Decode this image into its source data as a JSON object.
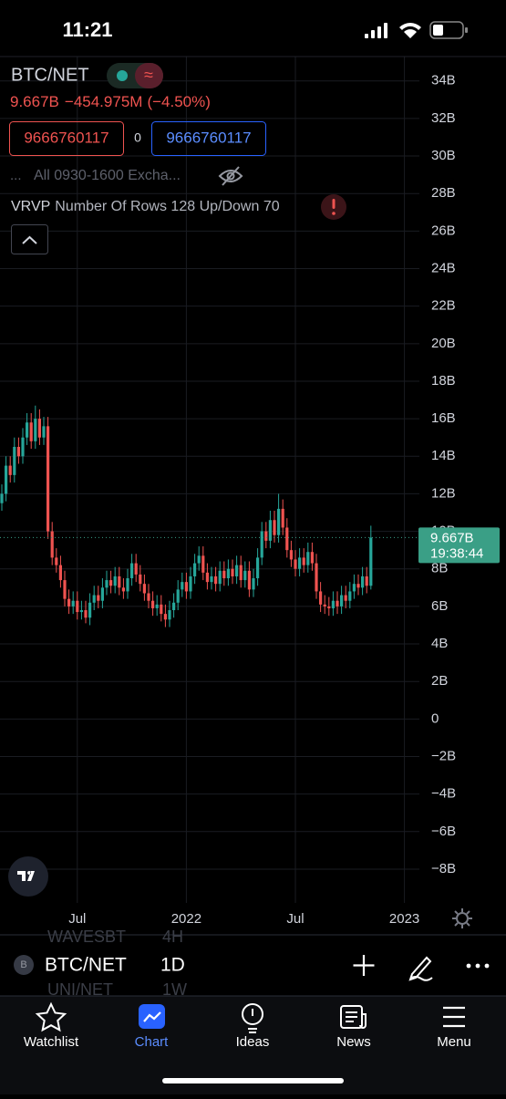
{
  "status_bar": {
    "time": "11:21"
  },
  "header": {
    "symbol": "BTC/NET",
    "last": "9.667B",
    "change": "−454.975M",
    "change_pct": "(−4.50%)"
  },
  "order_panel": {
    "sell": "9666760117",
    "spread": "0",
    "buy": "9666760117"
  },
  "session": {
    "dots": "...",
    "label": "All 0930-1600 Excha..."
  },
  "indicator": {
    "name": "VRVP",
    "params": "Number Of Rows 128 Up/Down 70"
  },
  "chart_data": {
    "type": "candlestick",
    "categories": [
      null,
      null,
      null,
      null,
      null,
      null,
      null,
      null,
      null,
      null,
      null,
      null,
      null,
      null,
      null,
      null,
      null,
      null,
      "Jul",
      null,
      null,
      null,
      null,
      null,
      null,
      null,
      null,
      null,
      null,
      null,
      null,
      null,
      null,
      null,
      null,
      null,
      null,
      null,
      null,
      null,
      null,
      null,
      null,
      null,
      "2022",
      null,
      null,
      null,
      null,
      null,
      null,
      null,
      null,
      null,
      null,
      null,
      null,
      null,
      null,
      null,
      null,
      null,
      null,
      null,
      null,
      null,
      null,
      null,
      null,
      null,
      "Jul",
      null,
      null,
      null,
      null,
      null,
      null,
      null,
      null,
      null,
      null,
      null,
      null,
      null,
      null,
      null,
      null,
      null,
      null,
      null,
      null,
      null,
      null,
      null,
      null,
      null,
      "2023"
    ],
    "open": [
      11.5,
      12.0,
      13.5,
      13.0,
      14.5,
      14.0,
      15.0,
      15.8,
      14.8,
      16.0,
      15.0,
      15.6,
      10.0,
      8.6,
      8.2,
      7.4,
      6.4,
      6.0,
      6.3,
      5.7,
      5.8,
      5.4,
      6.2,
      6.6,
      6.3,
      7.0,
      7.4,
      7.1,
      7.6,
      7.0,
      6.8,
      7.5,
      8.3,
      7.7,
      7.2,
      6.7,
      6.3,
      5.9,
      6.1,
      5.6,
      5.3,
      5.8,
      6.2,
      6.9,
      7.3,
      6.8,
      7.6,
      8.3,
      8.7,
      7.8,
      7.3,
      7.6,
      7.2,
      7.9,
      7.5,
      8.0,
      7.6,
      8.2,
      7.4,
      7.9,
      6.9,
      7.5,
      8.6,
      10.0,
      9.5,
      10.6,
      9.8,
      11.2,
      10.2,
      9.0,
      8.5,
      8.0,
      8.6,
      8.2,
      8.9,
      8.3,
      6.8,
      6.1,
      6.0,
      5.9,
      6.3,
      6.0,
      6.6,
      6.3,
      6.8,
      7.2,
      7.0,
      7.6,
      7.1,
      null,
      null,
      null,
      null,
      null,
      null,
      null,
      null
    ],
    "high": [
      12.5,
      14.0,
      14.0,
      15.0,
      15.0,
      15.5,
      16.3,
      16.3,
      16.7,
      16.5,
      16.1,
      16.1,
      10.5,
      9.1,
      8.7,
      7.9,
      6.9,
      6.8,
      6.8,
      6.3,
      6.3,
      6.7,
      7.1,
      7.1,
      7.5,
      7.9,
      7.9,
      8.1,
      8.1,
      7.5,
      8.0,
      8.8,
      8.8,
      8.2,
      7.7,
      7.2,
      6.8,
      6.6,
      6.6,
      6.1,
      6.3,
      6.7,
      7.4,
      7.8,
      7.8,
      8.1,
      8.8,
      9.2,
      9.2,
      8.3,
      8.1,
      8.1,
      8.4,
      8.4,
      8.5,
      8.5,
      8.7,
      8.7,
      8.4,
      8.4,
      8.0,
      9.1,
      10.5,
      10.5,
      11.1,
      11.1,
      12.0,
      11.7,
      10.7,
      9.5,
      9.0,
      9.1,
      9.1,
      9.4,
      9.4,
      8.8,
      7.3,
      6.6,
      6.5,
      6.8,
      6.8,
      7.1,
      7.1,
      7.3,
      7.7,
      7.7,
      8.1,
      8.1,
      10.3,
      null,
      null,
      null,
      null,
      null,
      null,
      null,
      null
    ],
    "low": [
      11.1,
      11.6,
      12.6,
      12.6,
      13.6,
      13.6,
      14.6,
      14.4,
      14.4,
      14.6,
      14.6,
      9.6,
      8.2,
      7.8,
      7.0,
      6.0,
      5.6,
      5.6,
      5.3,
      5.3,
      5.1,
      5.0,
      5.8,
      5.9,
      5.9,
      6.6,
      6.7,
      6.7,
      6.6,
      6.4,
      6.4,
      7.1,
      7.3,
      6.8,
      6.3,
      5.9,
      5.5,
      5.5,
      5.2,
      4.9,
      4.9,
      5.4,
      5.8,
      6.5,
      6.4,
      6.4,
      7.2,
      7.9,
      7.4,
      6.9,
      6.9,
      6.8,
      6.8,
      7.1,
      7.1,
      7.2,
      7.2,
      7.0,
      7.0,
      6.5,
      6.5,
      7.1,
      8.2,
      9.1,
      9.1,
      9.4,
      9.4,
      9.8,
      8.6,
      8.1,
      7.6,
      7.6,
      7.8,
      7.8,
      7.9,
      6.4,
      5.7,
      5.6,
      5.5,
      5.5,
      5.6,
      5.6,
      5.9,
      5.9,
      6.4,
      6.6,
      6.6,
      6.7,
      6.9,
      null,
      null,
      null,
      null,
      null,
      null,
      null,
      null
    ],
    "close": [
      12.0,
      13.5,
      13.0,
      14.5,
      14.0,
      15.0,
      15.8,
      14.8,
      16.0,
      15.0,
      15.6,
      10.0,
      8.6,
      8.2,
      7.4,
      6.4,
      6.0,
      6.3,
      5.7,
      5.8,
      5.4,
      6.2,
      6.6,
      6.3,
      7.0,
      7.4,
      7.1,
      7.6,
      7.0,
      6.8,
      7.5,
      8.3,
      7.7,
      7.2,
      6.7,
      6.3,
      5.9,
      6.1,
      5.6,
      5.3,
      5.8,
      6.2,
      6.9,
      7.3,
      6.8,
      7.6,
      8.3,
      8.7,
      7.8,
      7.3,
      7.6,
      7.2,
      7.9,
      7.5,
      8.0,
      7.6,
      8.2,
      7.4,
      7.9,
      6.9,
      7.5,
      8.6,
      10.0,
      9.5,
      10.6,
      9.8,
      11.2,
      10.2,
      9.0,
      8.5,
      8.0,
      8.6,
      8.2,
      8.9,
      8.3,
      6.8,
      6.1,
      6.0,
      5.9,
      6.3,
      6.0,
      6.6,
      6.3,
      6.8,
      7.2,
      7.0,
      7.6,
      7.1,
      9.667,
      null,
      null,
      null,
      null,
      null,
      null,
      null,
      null
    ],
    "up_color": "#26a69a",
    "down_color": "#ef5350",
    "ylim": [
      -9.8,
      35.3
    ],
    "yticks": [
      {
        "value": 34,
        "label": "34B"
      },
      {
        "value": 32,
        "label": "32B"
      },
      {
        "value": 30,
        "label": "30B"
      },
      {
        "value": 28,
        "label": "28B"
      },
      {
        "value": 26,
        "label": "26B"
      },
      {
        "value": 24,
        "label": "24B"
      },
      {
        "value": 22,
        "label": "22B"
      },
      {
        "value": 20,
        "label": "20B"
      },
      {
        "value": 18,
        "label": "18B"
      },
      {
        "value": 16,
        "label": "16B"
      },
      {
        "value": 14,
        "label": "14B"
      },
      {
        "value": 12,
        "label": "12B"
      },
      {
        "value": 10,
        "label": "10B"
      },
      {
        "value": 8,
        "label": "8B"
      },
      {
        "value": 6,
        "label": "6B"
      },
      {
        "value": 4,
        "label": "4B"
      },
      {
        "value": 2,
        "label": "2B"
      },
      0,
      {
        "value": -2,
        "label": "−2B"
      },
      {
        "value": -4,
        "label": "−4B"
      },
      {
        "value": -6,
        "label": "−6B"
      },
      {
        "value": -8,
        "label": "−8B"
      }
    ],
    "grid": true,
    "last_price": {
      "value": 9.667,
      "label": "9.667B",
      "countdown": "19:38:44",
      "color": "#3a9f86"
    }
  },
  "toolbar": {
    "symbol_icon": "B",
    "symbol": "BTC/NET",
    "interval": "1D",
    "ghost_above": [
      "WAVESBT",
      "4H"
    ],
    "ghost_below": [
      "UNI/NET",
      "1W"
    ]
  },
  "tab_bar": {
    "tabs": [
      "Watchlist",
      "Chart",
      "Ideas",
      "News",
      "Menu"
    ],
    "active": 1
  }
}
